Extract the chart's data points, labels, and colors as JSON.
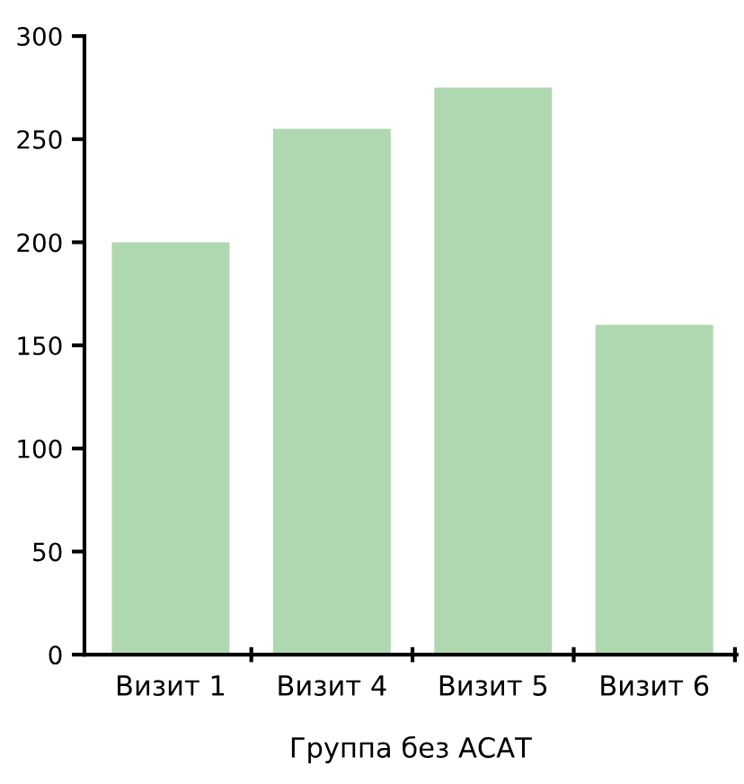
{
  "chart_data": {
    "type": "bar",
    "xlabel": "Группа без АСАТ",
    "categories": [
      "Визит 1",
      "Визит 4",
      "Визит 5",
      "Визит 6"
    ],
    "values": [
      200,
      255,
      275,
      160
    ],
    "color": "#b0d8b0",
    "ylim": [
      0,
      300
    ],
    "yticks": [
      0,
      50,
      100,
      150,
      200,
      250,
      300
    ],
    "grid": false,
    "legend": false
  }
}
